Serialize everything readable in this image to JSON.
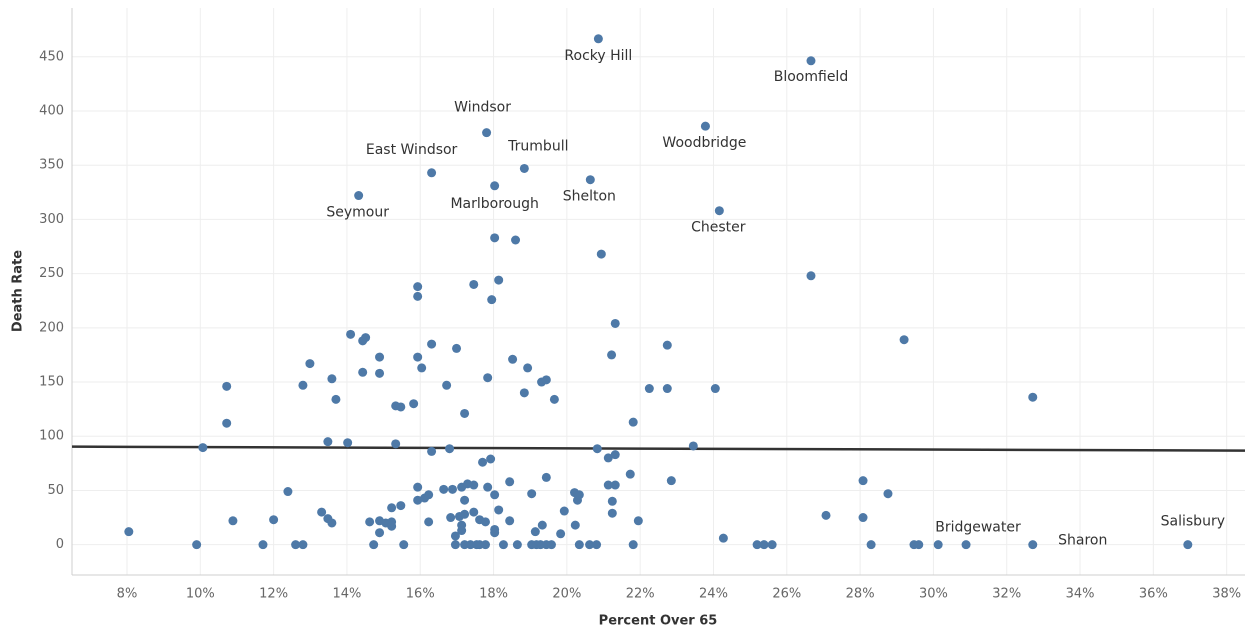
{
  "chart_data": {
    "type": "scatter",
    "x_label": "Percent Over 65",
    "y_label": "Death Rate",
    "color": "#4e79a7",
    "grid": true,
    "xlim": [
      6.5,
      38.5
    ],
    "ylim": [
      -28,
      495
    ],
    "xticks": [
      {
        "value": 8,
        "label": "8%"
      },
      {
        "value": 10,
        "label": "10%"
      },
      {
        "value": 12,
        "label": "12%"
      },
      {
        "value": 14,
        "label": "14%"
      },
      {
        "value": 16,
        "label": "16%"
      },
      {
        "value": 18,
        "label": "18%"
      },
      {
        "value": 20,
        "label": "20%"
      },
      {
        "value": 22,
        "label": "22%"
      },
      {
        "value": 24,
        "label": "24%"
      },
      {
        "value": 26,
        "label": "26%"
      },
      {
        "value": 28,
        "label": "28%"
      },
      {
        "value": 30,
        "label": "30%"
      },
      {
        "value": 32,
        "label": "32%"
      },
      {
        "value": 34,
        "label": "34%"
      },
      {
        "value": 36,
        "label": "36%"
      },
      {
        "value": 38,
        "label": "38%"
      }
    ],
    "yticks": [
      0,
      50,
      100,
      150,
      200,
      250,
      300,
      350,
      400,
      450
    ],
    "trend_line": {
      "x": [
        6.5,
        38.5
      ],
      "y": [
        90.4,
        86.7
      ]
    },
    "x": [
      20.86,
      26.66,
      17.81,
      23.78,
      16.31,
      18.84,
      14.32,
      18.03,
      20.64,
      24.16,
      29.47,
      32.71,
      36.94,
      8.05,
      9.9,
      10.07,
      10.72,
      10.72,
      10.89,
      11.71,
      12.0,
      12.39,
      12.6,
      12.8,
      12.8,
      12.99,
      13.31,
      13.48,
      13.59,
      13.59,
      13.7,
      13.48,
      14.02,
      14.1,
      14.43,
      14.51,
      14.43,
      14.62,
      14.73,
      14.89,
      14.89,
      14.89,
      14.89,
      15.06,
      15.22,
      15.22,
      15.22,
      15.33,
      15.33,
      15.47,
      15.47,
      15.55,
      15.82,
      15.93,
      15.93,
      15.93,
      15.93,
      15.93,
      16.04,
      16.12,
      16.23,
      16.23,
      16.31,
      16.31,
      16.64,
      16.72,
      16.8,
      16.83,
      16.88,
      16.96,
      16.96,
      16.99,
      17.07,
      17.13,
      17.13,
      17.13,
      17.21,
      17.21,
      17.21,
      17.21,
      17.29,
      17.37,
      17.46,
      17.46,
      17.46,
      17.54,
      17.62,
      17.62,
      17.7,
      17.78,
      17.78,
      17.84,
      17.84,
      17.92,
      17.95,
      18.03,
      18.03,
      18.03,
      18.03,
      18.14,
      18.14,
      18.27,
      18.44,
      18.44,
      18.52,
      18.6,
      18.65,
      18.84,
      18.93,
      19.04,
      19.04,
      19.14,
      19.17,
      19.28,
      19.31,
      19.33,
      19.44,
      19.44,
      19.44,
      19.58,
      19.66,
      19.83,
      19.93,
      20.21,
      20.23,
      20.29,
      20.34,
      20.34,
      20.62,
      20.81,
      20.83,
      20.94,
      21.13,
      21.13,
      21.22,
      21.24,
      21.24,
      21.32,
      21.32,
      21.32,
      21.73,
      21.81,
      21.81,
      21.95,
      22.25,
      22.74,
      22.74,
      22.85,
      23.45,
      24.05,
      24.27,
      25.19,
      25.38,
      25.6,
      26.66,
      27.07,
      28.08,
      28.08,
      28.3,
      28.76,
      29.2,
      29.6,
      30.13,
      30.89,
      32.71
    ],
    "values": [
      466.6,
      446.3,
      380,
      386,
      343,
      347,
      322,
      331,
      336.6,
      308,
      0,
      0,
      0,
      12,
      0,
      89.5,
      146,
      112,
      22,
      0,
      23,
      49,
      0,
      0,
      147,
      167,
      30,
      24,
      20,
      153,
      134,
      95,
      94,
      194,
      188,
      191,
      159,
      21,
      0,
      22,
      11,
      173,
      158,
      20,
      34,
      21,
      17,
      93,
      128,
      127,
      36,
      0,
      130,
      238,
      229,
      173,
      53,
      41,
      163,
      43,
      46,
      21,
      86,
      185,
      51,
      147,
      88.5,
      25,
      51,
      8,
      0,
      181,
      26,
      18,
      13,
      53,
      121,
      41,
      28,
      0,
      56,
      0,
      30,
      240,
      55,
      0,
      0,
      23,
      76,
      0,
      21,
      154,
      53,
      79,
      226,
      283,
      46,
      14,
      11,
      244,
      32,
      0,
      22,
      58,
      171,
      281,
      0,
      140,
      163,
      47,
      0,
      12,
      0,
      0,
      150,
      18,
      152,
      62,
      0,
      0,
      134,
      10,
      31,
      48,
      18,
      41,
      46,
      0,
      0,
      0,
      88.5,
      268,
      80,
      55,
      175,
      40,
      29,
      204,
      55,
      83,
      65,
      113,
      0,
      22,
      144,
      184,
      144,
      59,
      91,
      144,
      6,
      0,
      0,
      0,
      248,
      27,
      59,
      25,
      0,
      47,
      189,
      0,
      0,
      0,
      136
    ],
    "labels": [
      "Rocky Hill",
      "Bloomfield",
      "Windsor",
      "Woodbridge",
      "East Windsor",
      "Trumbull",
      "Seymour",
      "Marlborough",
      "Shelton",
      "Chester",
      "Bridgewater",
      "Sharon",
      "Salisbury"
    ]
  }
}
